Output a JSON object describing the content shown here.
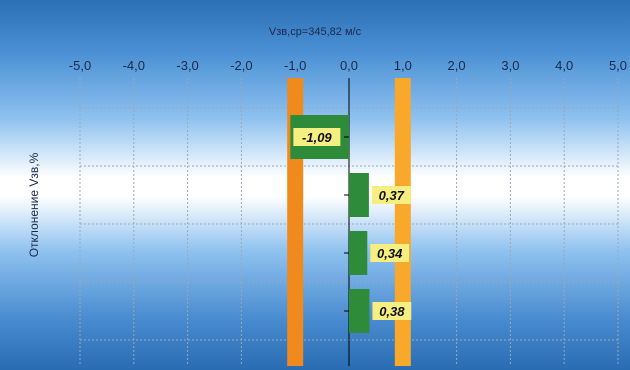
{
  "chart_data": {
    "type": "bar",
    "orientation": "horizontal",
    "title": "Vзв,ср=345,82 м/с",
    "xlabel": "",
    "ylabel": "Отклонение Vзв,%",
    "xlim": [
      -5.0,
      5.0
    ],
    "x_ticks": [
      "-5,0",
      "-4,0",
      "-3,0",
      "-2,0",
      "-1,0",
      "0,0",
      "1,0",
      "2,0",
      "3,0",
      "4,0",
      "5,0"
    ],
    "categories": [
      "",
      "",
      "",
      ""
    ],
    "values": [
      -1.09,
      0.37,
      0.34,
      0.38
    ],
    "value_labels": [
      "-1,09",
      "0,37",
      "0,34",
      "0,38"
    ],
    "reference_lines": [
      {
        "x": -1.0,
        "color": "#f08a1e"
      },
      {
        "x": 1.0,
        "color": "#f8a82a"
      }
    ],
    "grid": true,
    "legend": "none",
    "colors": {
      "bar": "#2e8b3a",
      "label_bg": "#f5ee80",
      "limit_left": "#f08a1e",
      "limit_right": "#f8a82a",
      "axis": "#000000",
      "grid": "#9aa8b8"
    }
  }
}
